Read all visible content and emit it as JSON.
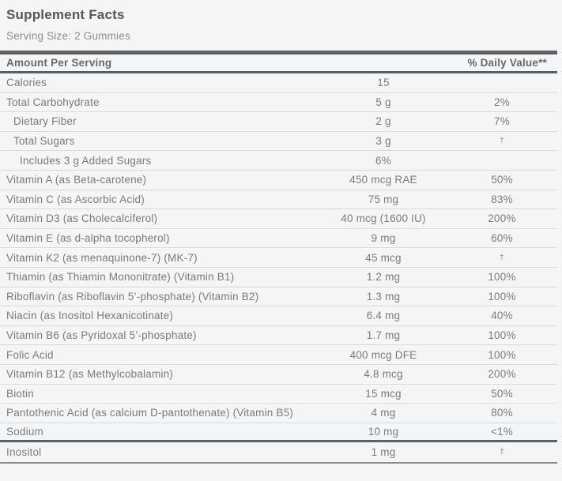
{
  "title": "Supplement Facts",
  "serving_size": "Serving Size: 2 Gummies",
  "table": {
    "columns": {
      "amount_header": "Amount Per Serving",
      "daily_value_header": "% Daily Value**"
    },
    "rows": [
      {
        "label": "Calories",
        "amount": "15",
        "dv": "",
        "indent": 0,
        "rule": "normal"
      },
      {
        "label": "Total Carbohydrate",
        "amount": "5 g",
        "dv": "2%",
        "indent": 0,
        "rule": "normal"
      },
      {
        "label": "Dietary Fiber",
        "amount": "2 g",
        "dv": "7%",
        "indent": 1,
        "rule": "normal"
      },
      {
        "label": "Total Sugars",
        "amount": "3 g",
        "dv": "†",
        "indent": 1,
        "rule": "normal"
      },
      {
        "label": "Includes 3 g Added Sugars",
        "amount": "6%",
        "dv": "",
        "indent": 2,
        "rule": "normal"
      },
      {
        "label": "Vitamin A (as Beta-carotene)",
        "amount": "450 mcg RAE",
        "dv": "50%",
        "indent": 0,
        "rule": "normal"
      },
      {
        "label": "Vitamin C (as Ascorbic Acid)",
        "amount": "75 mg",
        "dv": "83%",
        "indent": 0,
        "rule": "normal"
      },
      {
        "label": "Vitamin D3 (as Cholecalciferol)",
        "amount": "40 mcg (1600 IU)",
        "dv": "200%",
        "indent": 0,
        "rule": "normal"
      },
      {
        "label": "Vitamin E (as d-alpha tocopherol)",
        "amount": "9 mg",
        "dv": "60%",
        "indent": 0,
        "rule": "normal"
      },
      {
        "label": "Vitamin K2 (as menaquinone-7) (MK-7)",
        "amount": "45 mcg",
        "dv": "†",
        "indent": 0,
        "rule": "normal"
      },
      {
        "label": "Thiamin (as Thiamin Mononitrate) (Vitamin B1)",
        "amount": "1.2 mg",
        "dv": "100%",
        "indent": 0,
        "rule": "normal"
      },
      {
        "label": "Riboflavin (as Riboflavin 5’-phosphate) (Vitamin B2)",
        "amount": "1.3 mg",
        "dv": "100%",
        "indent": 0,
        "rule": "normal"
      },
      {
        "label": "Niacin (as Inositol Hexanicotinate)",
        "amount": "6.4 mg",
        "dv": "40%",
        "indent": 0,
        "rule": "normal"
      },
      {
        "label": "Vitamin B6 (as Pyridoxal 5’-phosphate)",
        "amount": "1.7 mg",
        "dv": "100%",
        "indent": 0,
        "rule": "normal"
      },
      {
        "label": "Folic Acid",
        "amount": "400 mcg DFE",
        "dv": "100%",
        "indent": 0,
        "rule": "normal"
      },
      {
        "label": "Vitamin B12 (as Methylcobalamin)",
        "amount": "4.8 mcg",
        "dv": "200%",
        "indent": 0,
        "rule": "normal"
      },
      {
        "label": "Biotin",
        "amount": "15 mcg",
        "dv": "50%",
        "indent": 0,
        "rule": "normal"
      },
      {
        "label": "Pantothenic Acid (as calcium D-pantothenate) (Vitamin B5)",
        "amount": "4 mg",
        "dv": "80%",
        "indent": 0,
        "rule": "normal"
      },
      {
        "label": "Sodium",
        "amount": "10 mg",
        "dv": "<1%",
        "indent": 0,
        "rule": "dark"
      },
      {
        "label": "Inositol",
        "amount": "1 mg",
        "dv": "†",
        "indent": 0,
        "rule": "end"
      }
    ]
  },
  "colors": {
    "background": "#f4f5f6",
    "heavy_bar": "#5d6063",
    "row_separator": "#d9dadc",
    "bottom_rule": "#8a8d90",
    "title_text": "#5b5551",
    "body_text": "#7b7a7e"
  }
}
